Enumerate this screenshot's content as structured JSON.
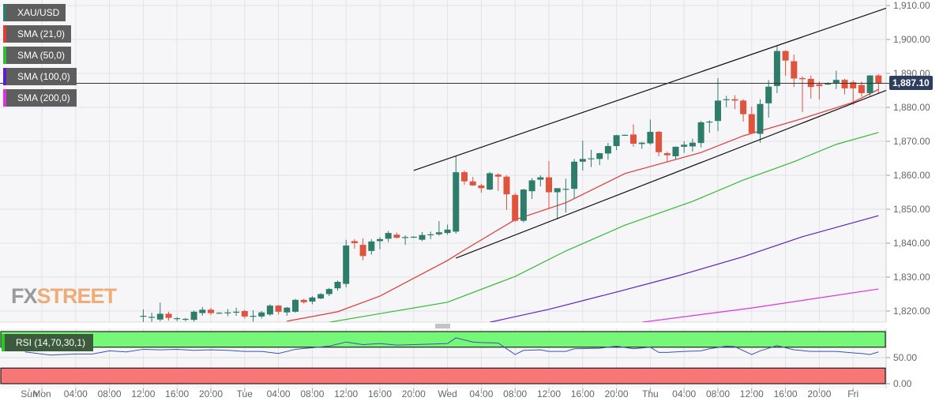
{
  "legend": {
    "symbol": {
      "label": "XAU/USD",
      "color": "#2e7d6b"
    },
    "indicators": [
      {
        "label": "SMA (21,0)",
        "color": "#e53935"
      },
      {
        "label": "SMA (50,0)",
        "color": "#33bb33"
      },
      {
        "label": "SMA (100,0)",
        "color": "#5b1fc9"
      },
      {
        "label": "SMA (200,0)",
        "color": "#dd33dd"
      }
    ],
    "rsi": {
      "label": "RSI (14,70,30,1)"
    }
  },
  "logo": {
    "part1": "FX",
    "part2": "STREET"
  },
  "last_price": "1,887.10",
  "chart_data": {
    "type": "candlestick",
    "title": "",
    "start": "Mon 12:00",
    "interval_hours": 1,
    "y_ticks": [
      "1,910.00",
      "1,900.00",
      "1,890.00",
      "1,880.00",
      "1,870.00",
      "1,860.00",
      "1,850.00",
      "1,840.00",
      "1,830.00",
      "1,820.00"
    ],
    "ylim": [
      1816.7,
      1911.6
    ],
    "x_ticks": [
      "Sun",
      "Mon",
      "04:00",
      "08:00",
      "12:00",
      "16:00",
      "20:00",
      "Tue",
      "04:00",
      "08:00",
      "12:00",
      "16:00",
      "20:00",
      "Wed",
      "04:00",
      "08:00",
      "12:00",
      "16:00",
      "20:00",
      "Thu",
      "04:00",
      "08:00",
      "12:00",
      "16:00",
      "20:00",
      "Fri"
    ],
    "grid": true,
    "colors": {
      "up": "#2e7d6b",
      "down": "#e0533d"
    },
    "candles_ohlc": [
      [
        1818.5,
        1820.5,
        1816.8,
        1818.6
      ],
      [
        1818.2,
        1819.5,
        1816.8,
        1818.3
      ],
      [
        1817.5,
        1822.5,
        1817.0,
        1819.2
      ],
      [
        1819.2,
        1819.8,
        1817.2,
        1818.0
      ],
      [
        1817.8,
        1818.2,
        1817.0,
        1817.9
      ],
      [
        1817.6,
        1818.0,
        1817.0,
        1817.7
      ],
      [
        1817.4,
        1820.2,
        1816.9,
        1819.8
      ],
      [
        1819.4,
        1821.2,
        1818.6,
        1820.4
      ],
      [
        1820.4,
        1821.0,
        1818.8,
        1819.4
      ],
      [
        1819.4,
        1819.7,
        1819.2,
        1819.5
      ],
      [
        1819.5,
        1820.6,
        1818.5,
        1819.6
      ],
      [
        1819.6,
        1821.0,
        1818.6,
        1819.8
      ],
      [
        1820.0,
        1820.4,
        1817.8,
        1818.4
      ],
      [
        1818.4,
        1820.2,
        1816.9,
        1818.6
      ],
      [
        1818.4,
        1820.0,
        1817.8,
        1819.6
      ],
      [
        1819.0,
        1822.0,
        1818.6,
        1821.6
      ],
      [
        1821.6,
        1821.8,
        1819.0,
        1819.8
      ],
      [
        1819.6,
        1821.2,
        1818.6,
        1821.0
      ],
      [
        1819.8,
        1823.6,
        1819.5,
        1823.3
      ],
      [
        1823.3,
        1823.6,
        1822.2,
        1822.6
      ],
      [
        1822.8,
        1824.4,
        1822.0,
        1824.0
      ],
      [
        1823.7,
        1825.3,
        1823.5,
        1825.0
      ],
      [
        1825.0,
        1826.8,
        1824.4,
        1826.5
      ],
      [
        1826.7,
        1829.0,
        1826.0,
        1828.6
      ],
      [
        1828.0,
        1841.0,
        1827.0,
        1839.3
      ],
      [
        1840.6,
        1841.2,
        1838.4,
        1840.0
      ],
      [
        1839.5,
        1841.4,
        1835.0,
        1836.2
      ],
      [
        1837.7,
        1841.2,
        1836.6,
        1840.5
      ],
      [
        1840.6,
        1841.8,
        1838.2,
        1841.2
      ],
      [
        1841.3,
        1843.6,
        1840.3,
        1843.0
      ],
      [
        1842.5,
        1843.1,
        1841.4,
        1841.6
      ],
      [
        1841.6,
        1842.3,
        1839.5,
        1841.8
      ],
      [
        1841.8,
        1842.0,
        1841.5,
        1841.9
      ],
      [
        1841.0,
        1843.3,
        1840.6,
        1842.4
      ],
      [
        1842.4,
        1843.4,
        1841.2,
        1842.6
      ],
      [
        1842.6,
        1846.5,
        1842.2,
        1843.2
      ],
      [
        1843.0,
        1845.5,
        1842.5,
        1844.0
      ],
      [
        1843.4,
        1865.8,
        1842.8,
        1860.9
      ],
      [
        1860.9,
        1861.4,
        1857.2,
        1858.2
      ],
      [
        1858.2,
        1859.5,
        1856.9,
        1857.0
      ],
      [
        1857.0,
        1857.5,
        1854.8,
        1856.2
      ],
      [
        1855.8,
        1861.0,
        1855.6,
        1860.6
      ],
      [
        1860.2,
        1860.6,
        1855.4,
        1859.6
      ],
      [
        1859.6,
        1860.0,
        1849.8,
        1854.4
      ],
      [
        1854.2,
        1854.8,
        1846.2,
        1846.6
      ],
      [
        1846.6,
        1856.0,
        1846.1,
        1855.8
      ],
      [
        1855.3,
        1859.2,
        1853.0,
        1858.5
      ],
      [
        1858.7,
        1860.0,
        1856.7,
        1859.4
      ],
      [
        1859.4,
        1864.2,
        1850.2,
        1855.0
      ],
      [
        1855.0,
        1856.0,
        1847.0,
        1856.2
      ],
      [
        1856.0,
        1859.0,
        1849.0,
        1856.0
      ],
      [
        1856.0,
        1864.8,
        1853.0,
        1864.0
      ],
      [
        1864.0,
        1870.2,
        1861.4,
        1864.8
      ],
      [
        1864.8,
        1867.5,
        1862.4,
        1865.0
      ],
      [
        1864.8,
        1866.6,
        1863.0,
        1866.5
      ],
      [
        1866.4,
        1869.5,
        1864.6,
        1868.6
      ],
      [
        1868.6,
        1871.9,
        1867.4,
        1871.8
      ],
      [
        1871.9,
        1872.0,
        1871.8,
        1871.9
      ],
      [
        1872.0,
        1875.0,
        1868.4,
        1869.3
      ],
      [
        1869.2,
        1869.8,
        1867.8,
        1869.6
      ],
      [
        1869.4,
        1876.4,
        1869.0,
        1872.8
      ],
      [
        1872.8,
        1873.0,
        1865.6,
        1866.8
      ],
      [
        1866.5,
        1867.0,
        1864.0,
        1865.9
      ],
      [
        1865.6,
        1868.5,
        1864.8,
        1868.4
      ],
      [
        1868.4,
        1870.0,
        1866.6,
        1869.0
      ],
      [
        1868.5,
        1870.8,
        1867.0,
        1869.6
      ],
      [
        1869.5,
        1876.0,
        1868.2,
        1875.6
      ],
      [
        1875.6,
        1876.2,
        1872.5,
        1875.8
      ],
      [
        1876.0,
        1888.6,
        1873.0,
        1882.0
      ],
      [
        1882.2,
        1883.4,
        1880.0,
        1882.4
      ],
      [
        1882.4,
        1883.6,
        1879.5,
        1882.0
      ],
      [
        1882.0,
        1882.4,
        1875.8,
        1878.0
      ],
      [
        1878.0,
        1880.2,
        1872.2,
        1872.4
      ],
      [
        1872.2,
        1882.4,
        1869.6,
        1881.0
      ],
      [
        1881.2,
        1888.0,
        1877.0,
        1886.1
      ],
      [
        1886.3,
        1898.1,
        1884.2,
        1896.6
      ],
      [
        1896.6,
        1896.8,
        1889.3,
        1893.8
      ],
      [
        1893.6,
        1895.5,
        1886.0,
        1888.5
      ],
      [
        1888.6,
        1889.2,
        1878.6,
        1888.3
      ],
      [
        1888.4,
        1889.4,
        1882.6,
        1886.0
      ],
      [
        1886.8,
        1887.6,
        1882.3,
        1886.3
      ],
      [
        1887.0,
        1887.4,
        1886.6,
        1887.0
      ],
      [
        1887.0,
        1890.8,
        1885.4,
        1888.1
      ],
      [
        1888.1,
        1888.4,
        1883.8,
        1885.6
      ],
      [
        1887.4,
        1888.0,
        1880.8,
        1885.6
      ],
      [
        1886.6,
        1887.6,
        1883.2,
        1884.2
      ],
      [
        1884.2,
        1889.5,
        1883.4,
        1889.4
      ],
      [
        1889.4,
        1889.8,
        1884.0,
        1887.1
      ]
    ],
    "series": [
      {
        "name": "SMA (21,0)",
        "color": "#e53935",
        "points": [
          [
            "Tue 05:00",
            1817.0
          ],
          [
            "Tue 11:00",
            1819.8
          ],
          [
            "Tue 16:00",
            1824.4
          ],
          [
            "Wed 00:00",
            1834.9
          ],
          [
            "Wed 02:00",
            1838.0
          ],
          [
            "Wed 08:00",
            1846.9
          ],
          [
            "Wed 14:00",
            1851.9
          ],
          [
            "Wed 21:00",
            1860.5
          ],
          [
            "Thu 06:00",
            1866.7
          ],
          [
            "Thu 11:00",
            1871.6
          ],
          [
            "Thu 18:00",
            1876.7
          ],
          [
            "Fri 00:00",
            1881.5
          ],
          [
            "Fri 03:00",
            1885.3
          ]
        ]
      },
      {
        "name": "SMA (50,0)",
        "color": "#33bb33",
        "points": [
          [
            "Tue 10:00",
            1816.7
          ],
          [
            "Wed 00:00",
            1822.6
          ],
          [
            "Wed 08:00",
            1830.2
          ],
          [
            "Wed 14:00",
            1837.7
          ],
          [
            "Wed 21:00",
            1845.3
          ],
          [
            "Thu 05:00",
            1852.3
          ],
          [
            "Thu 11:00",
            1858.6
          ],
          [
            "Thu 17:00",
            1864.0
          ],
          [
            "Thu 22:00",
            1869.1
          ],
          [
            "Fri 03:00",
            1872.6
          ]
        ]
      },
      {
        "name": "SMA (100,0)",
        "color": "#5b1fc9",
        "points": [
          [
            "Wed 05:00",
            1816.7
          ],
          [
            "Wed 12:00",
            1820.5
          ],
          [
            "Wed 20:00",
            1825.6
          ],
          [
            "Thu 03:00",
            1830.2
          ],
          [
            "Thu 11:00",
            1836.0
          ],
          [
            "Thu 18:00",
            1841.9
          ],
          [
            "Fri 03:00",
            1848.1
          ]
        ]
      },
      {
        "name": "SMA (200,0)",
        "color": "#dd33dd",
        "points": [
          [
            "Wed 23:00",
            1816.7
          ],
          [
            "Thu 12:00",
            1820.9
          ],
          [
            "Fri 03:00",
            1826.5
          ]
        ]
      }
    ],
    "trendlines": [
      {
        "from": [
          "Tue 20:00",
          1861.4
        ],
        "to": [
          "Fri 04:00",
          1909.3
        ]
      },
      {
        "from": [
          "Wed 01:00",
          1835.6
        ],
        "to": [
          "Fri 04:00",
          1885.1
        ]
      }
    ],
    "last_price_line": 1887.1,
    "rsi": {
      "y_ticks": [
        "50.00",
        "0.00"
      ],
      "overbought": 70,
      "oversold": 30,
      "colors": {
        "line": "#3f51b5",
        "overbought": "#77f777",
        "oversold": "#f77777"
      },
      "points": [
        [
          "Sun 22:00",
          61
        ],
        [
          "Mon 01:00",
          55
        ],
        [
          "Mon 04:00",
          57
        ],
        [
          "Mon 06:00",
          57
        ],
        [
          "Mon 08:00",
          63
        ],
        [
          "Mon 10:00",
          61
        ],
        [
          "Mon 12:00",
          66
        ],
        [
          "Mon 14:00",
          65
        ],
        [
          "Mon 16:00",
          66
        ],
        [
          "Mon 18:00",
          64
        ],
        [
          "Mon 20:00",
          65
        ],
        [
          "Mon 22:00",
          64
        ],
        [
          "Tue 00:00",
          62
        ],
        [
          "Tue 02:00",
          62
        ],
        [
          "Tue 04:00",
          58
        ],
        [
          "Tue 06:00",
          66
        ],
        [
          "Tue 08:00",
          69
        ],
        [
          "Tue 10:00",
          72
        ],
        [
          "Tue 12:00",
          80
        ],
        [
          "Tue 14:00",
          75
        ],
        [
          "Tue 16:00",
          77
        ],
        [
          "Tue 18:00",
          74
        ],
        [
          "Tue 20:00",
          75
        ],
        [
          "Tue 22:00",
          76
        ],
        [
          "Wed 00:00",
          77
        ],
        [
          "Wed 01:00",
          88
        ],
        [
          "Wed 03:00",
          80
        ],
        [
          "Wed 04:00",
          79
        ],
        [
          "Wed 06:00",
          78
        ],
        [
          "Wed 08:00",
          56
        ],
        [
          "Wed 09:00",
          64
        ],
        [
          "Wed 11:00",
          65
        ],
        [
          "Wed 12:00",
          62
        ],
        [
          "Wed 14:00",
          62
        ],
        [
          "Wed 15:00",
          67
        ],
        [
          "Wed 18:00",
          68
        ],
        [
          "Wed 20:00",
          72
        ],
        [
          "Wed 22:00",
          67
        ],
        [
          "Thu 00:00",
          70
        ],
        [
          "Thu 01:00",
          60
        ],
        [
          "Thu 02:00",
          60
        ],
        [
          "Thu 04:00",
          62
        ],
        [
          "Thu 06:00",
          63
        ],
        [
          "Thu 07:00",
          67
        ],
        [
          "Thu 09:00",
          72
        ],
        [
          "Thu 10:00",
          71
        ],
        [
          "Thu 12:00",
          56
        ],
        [
          "Thu 13:00",
          63
        ],
        [
          "Thu 15:00",
          73
        ],
        [
          "Thu 17:00",
          65
        ],
        [
          "Thu 19:00",
          62
        ],
        [
          "Thu 22:00",
          62
        ],
        [
          "Fri 00:00",
          59
        ],
        [
          "Fri 01:00",
          58
        ],
        [
          "Fri 02:00",
          56
        ],
        [
          "Fri 03:00",
          61
        ]
      ]
    }
  }
}
